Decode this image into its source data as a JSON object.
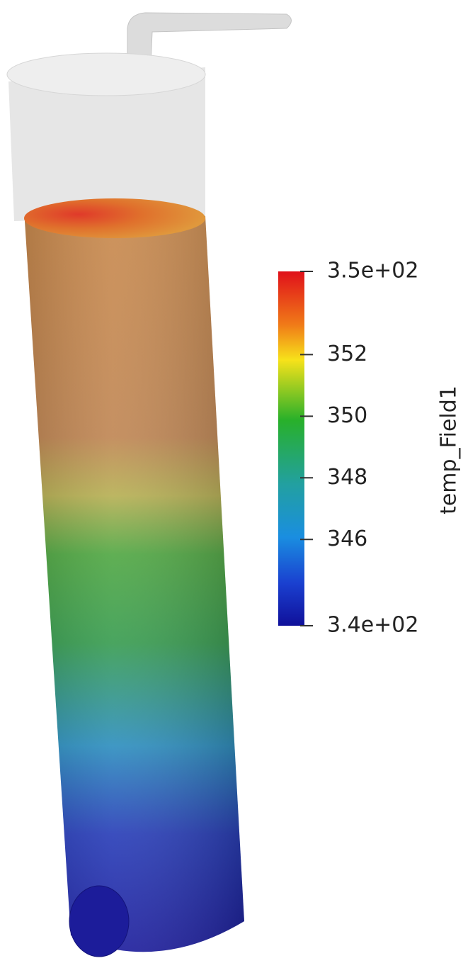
{
  "colorbar": {
    "title": "temp_Field1",
    "range": [
      343.2,
      354.7
    ],
    "ticks": [
      {
        "value": 354.7,
        "label": "3.5e+02"
      },
      352,
      350,
      348,
      346,
      {
        "value": 343.2,
        "label": "3.4e+02"
      }
    ]
  }
}
